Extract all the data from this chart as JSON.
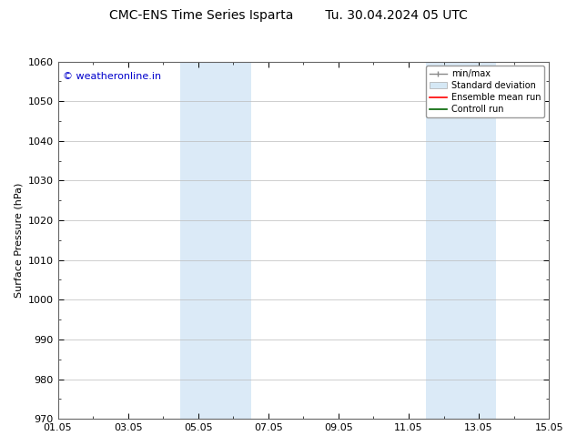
{
  "title_left": "CMC-ENS Time Series Isparta",
  "title_right": "Tu. 30.04.2024 05 UTC",
  "ylabel": "Surface Pressure (hPa)",
  "ylim": [
    970,
    1060
  ],
  "yticks": [
    970,
    980,
    990,
    1000,
    1010,
    1020,
    1030,
    1040,
    1050,
    1060
  ],
  "xtick_labels": [
    "01.05",
    "03.05",
    "05.05",
    "07.05",
    "09.05",
    "11.05",
    "13.05",
    "15.05"
  ],
  "xtick_positions": [
    0,
    2,
    4,
    6,
    8,
    10,
    12,
    14
  ],
  "shaded_bands": [
    {
      "x_start": 3.5,
      "x_end": 5.5,
      "color": "#dbeaf7"
    },
    {
      "x_start": 10.5,
      "x_end": 12.5,
      "color": "#dbeaf7"
    }
  ],
  "watermark_text": "© weatheronline.in",
  "watermark_color": "#0000cc",
  "watermark_fontsize": 8,
  "legend_labels": [
    "min/max",
    "Standard deviation",
    "Ensemble mean run",
    "Controll run"
  ],
  "legend_colors": [
    "#aaaaaa",
    "#c8dff0",
    "red",
    "green"
  ],
  "background_color": "#ffffff",
  "plot_bg_color": "#ffffff",
  "grid_color": "#bbbbbb",
  "title_fontsize": 10,
  "axis_fontsize": 8,
  "tick_fontsize": 8
}
